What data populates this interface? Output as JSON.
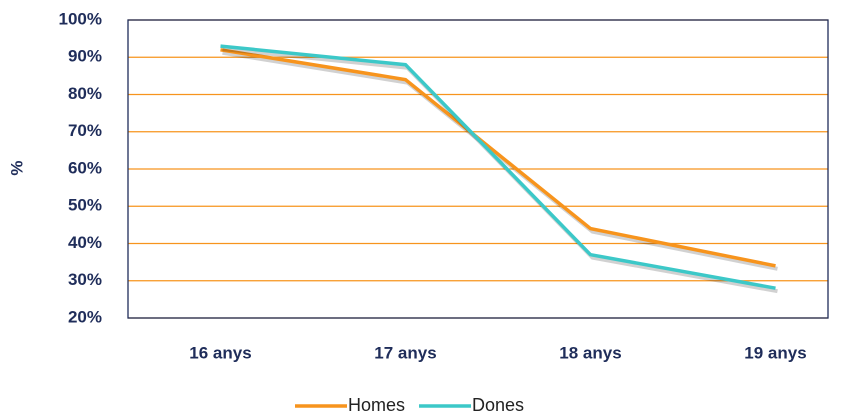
{
  "chart_data": {
    "type": "line",
    "ylabel": "%",
    "categories": [
      "16 anys",
      "17 anys",
      "18 anys",
      "19 anys"
    ],
    "series": [
      {
        "name": "Homes",
        "color": "#f7941d",
        "values": [
          92,
          84,
          44,
          34
        ]
      },
      {
        "name": "Dones",
        "color": "#3cc8c8",
        "values": [
          93,
          88,
          37,
          28
        ]
      }
    ],
    "ylim": [
      20,
      100
    ],
    "yticks": [
      {
        "value": 20,
        "label": "20%"
      },
      {
        "value": 30,
        "label": "30%"
      },
      {
        "value": 40,
        "label": "40%"
      },
      {
        "value": 50,
        "label": "50%"
      },
      {
        "value": 60,
        "label": "60%"
      },
      {
        "value": 70,
        "label": "70%"
      },
      {
        "value": 80,
        "label": "80%"
      },
      {
        "value": 90,
        "label": "90%"
      },
      {
        "value": 100,
        "label": "100%"
      }
    ],
    "grid": true,
    "grid_color": "#f7941d",
    "legend": "bottom"
  }
}
